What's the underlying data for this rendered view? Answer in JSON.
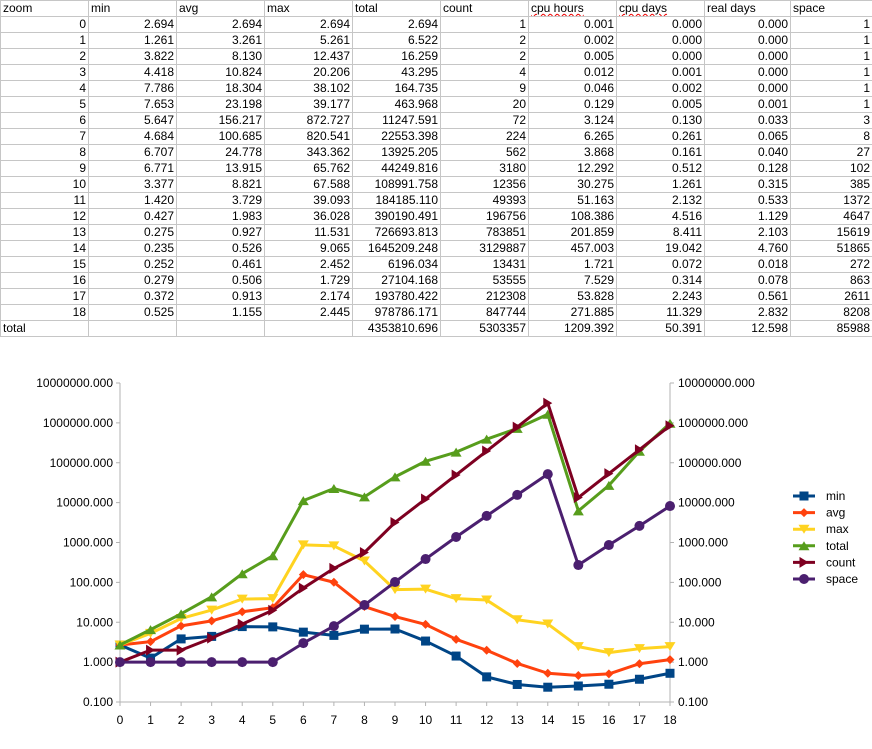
{
  "sheet": {
    "headers": [
      "zoom",
      "min",
      "avg",
      "max",
      "total",
      "count",
      "cpu hours",
      "cpu days",
      "real days",
      "space"
    ],
    "rows": [
      [
        "0",
        "2.694",
        "2.694",
        "2.694",
        "2.694",
        "1",
        "0.001",
        "0.000",
        "0.000",
        "1"
      ],
      [
        "1",
        "1.261",
        "3.261",
        "5.261",
        "6.522",
        "2",
        "0.002",
        "0.000",
        "0.000",
        "1"
      ],
      [
        "2",
        "3.822",
        "8.130",
        "12.437",
        "16.259",
        "2",
        "0.005",
        "0.000",
        "0.000",
        "1"
      ],
      [
        "3",
        "4.418",
        "10.824",
        "20.206",
        "43.295",
        "4",
        "0.012",
        "0.001",
        "0.000",
        "1"
      ],
      [
        "4",
        "7.786",
        "18.304",
        "38.102",
        "164.735",
        "9",
        "0.046",
        "0.002",
        "0.000",
        "1"
      ],
      [
        "5",
        "7.653",
        "23.198",
        "39.177",
        "463.968",
        "20",
        "0.129",
        "0.005",
        "0.001",
        "1"
      ],
      [
        "6",
        "5.647",
        "156.217",
        "872.727",
        "11247.591",
        "72",
        "3.124",
        "0.130",
        "0.033",
        "3"
      ],
      [
        "7",
        "4.684",
        "100.685",
        "820.541",
        "22553.398",
        "224",
        "6.265",
        "0.261",
        "0.065",
        "8"
      ],
      [
        "8",
        "6.707",
        "24.778",
        "343.362",
        "13925.205",
        "562",
        "3.868",
        "0.161",
        "0.040",
        "27"
      ],
      [
        "9",
        "6.771",
        "13.915",
        "65.762",
        "44249.816",
        "3180",
        "12.292",
        "0.512",
        "0.128",
        "102"
      ],
      [
        "10",
        "3.377",
        "8.821",
        "67.588",
        "108991.758",
        "12356",
        "30.275",
        "1.261",
        "0.315",
        "385"
      ],
      [
        "11",
        "1.420",
        "3.729",
        "39.093",
        "184185.110",
        "49393",
        "51.163",
        "2.132",
        "0.533",
        "1372"
      ],
      [
        "12",
        "0.427",
        "1.983",
        "36.028",
        "390190.491",
        "196756",
        "108.386",
        "4.516",
        "1.129",
        "4647"
      ],
      [
        "13",
        "0.275",
        "0.927",
        "11.531",
        "726693.813",
        "783851",
        "201.859",
        "8.411",
        "2.103",
        "15619"
      ],
      [
        "14",
        "0.235",
        "0.526",
        "9.065",
        "1645209.248",
        "3129887",
        "457.003",
        "19.042",
        "4.760",
        "51865"
      ],
      [
        "15",
        "0.252",
        "0.461",
        "2.452",
        "6196.034",
        "13431",
        "1.721",
        "0.072",
        "0.018",
        "272"
      ],
      [
        "16",
        "0.279",
        "0.506",
        "1.729",
        "27104.168",
        "53555",
        "7.529",
        "0.314",
        "0.078",
        "863"
      ],
      [
        "17",
        "0.372",
        "0.913",
        "2.174",
        "193780.422",
        "212308",
        "53.828",
        "2.243",
        "0.561",
        "2611"
      ],
      [
        "18",
        "0.525",
        "1.155",
        "2.445",
        "978786.171",
        "847744",
        "271.885",
        "11.329",
        "2.832",
        "8208"
      ],
      [
        "total",
        "",
        "",
        "",
        "4353810.696",
        "5303357",
        "1209.392",
        "50.391",
        "12.598",
        "85988"
      ]
    ]
  },
  "chart_data": {
    "type": "line",
    "title": "",
    "xlabel": "",
    "ylabel": "",
    "yscale": "log",
    "ylim": [
      0.1,
      10000000
    ],
    "x": [
      0,
      1,
      2,
      3,
      4,
      5,
      6,
      7,
      8,
      9,
      10,
      11,
      12,
      13,
      14,
      15,
      16,
      17,
      18
    ],
    "y_ticks": [
      "10000000.000",
      "1000000.000",
      "100000.000",
      "10000.000",
      "1000.000",
      "100.000",
      "10.000",
      "1.000",
      "0.100"
    ],
    "grid": false,
    "legend_position": "right",
    "series": [
      {
        "name": "min",
        "color": "#004586",
        "marker": "square",
        "values": [
          2.694,
          1.261,
          3.822,
          4.418,
          7.786,
          7.653,
          5.647,
          4.684,
          6.707,
          6.771,
          3.377,
          1.42,
          0.427,
          0.275,
          0.235,
          0.252,
          0.279,
          0.372,
          0.525
        ]
      },
      {
        "name": "avg",
        "color": "#ff420e",
        "marker": "diamond",
        "values": [
          2.694,
          3.261,
          8.13,
          10.824,
          18.304,
          23.198,
          156.217,
          100.685,
          24.778,
          13.915,
          8.821,
          3.729,
          1.983,
          0.927,
          0.526,
          0.461,
          0.506,
          0.913,
          1.155
        ]
      },
      {
        "name": "max",
        "color": "#ffd320",
        "marker": "triangle-down",
        "values": [
          2.694,
          5.261,
          12.437,
          20.206,
          38.102,
          39.177,
          872.727,
          820.541,
          343.362,
          65.762,
          67.588,
          39.093,
          36.028,
          11.531,
          9.065,
          2.452,
          1.729,
          2.174,
          2.445
        ]
      },
      {
        "name": "total",
        "color": "#579d1c",
        "marker": "triangle-up",
        "values": [
          2.694,
          6.522,
          16.259,
          43.295,
          164.735,
          463.968,
          11247.591,
          22553.398,
          13925.205,
          44249.816,
          108991.758,
          184185.11,
          390190.491,
          726693.813,
          1645209.248,
          6196.034,
          27104.168,
          193780.422,
          978786.171
        ]
      },
      {
        "name": "count",
        "color": "#7e0021",
        "marker": "triangle-right",
        "values": [
          1,
          2,
          2,
          4,
          9,
          20,
          72,
          224,
          562,
          3180,
          12356,
          49393,
          196756,
          783851,
          3129887,
          13431,
          53555,
          212308,
          847744
        ]
      },
      {
        "name": "space",
        "color": "#4b1f6f",
        "marker": "circle",
        "values": [
          1,
          1,
          1,
          1,
          1,
          1,
          3,
          8,
          27,
          102,
          385,
          1372,
          4647,
          15619,
          51865,
          272,
          863,
          2611,
          8208
        ]
      }
    ]
  }
}
